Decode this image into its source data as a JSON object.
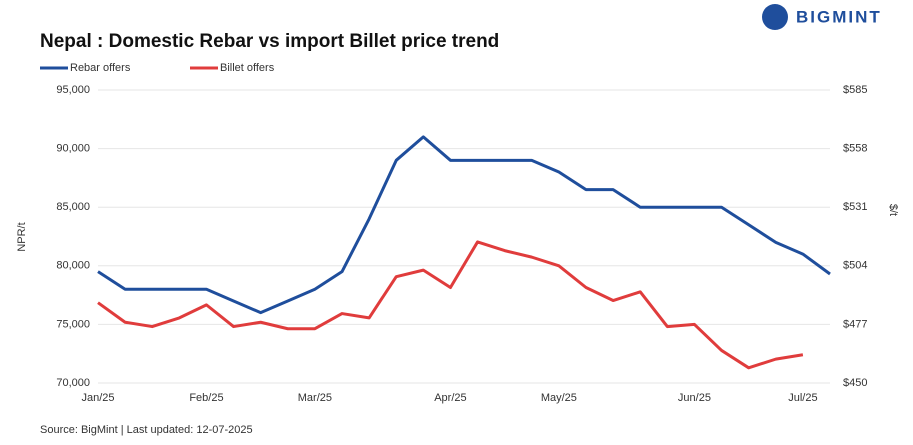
{
  "brand": "BIGMINT",
  "chart_data": {
    "type": "line",
    "title": "Nepal : Domestic Rebar vs import Billet price trend",
    "ylabel": "NPR/t",
    "y2label": "$/t",
    "source": "Source: BigMint | Last updated: 12-07-2025",
    "categories": [
      "Jan/25",
      null,
      null,
      null,
      "Feb/25",
      null,
      null,
      null,
      "Mar/25",
      null,
      null,
      null,
      null,
      "Apr/25",
      null,
      null,
      null,
      "May/25",
      null,
      null,
      null,
      null,
      "Jun/25",
      null,
      null,
      null,
      "Jul/25",
      null
    ],
    "series": [
      {
        "name": "Rebar offers",
        "color": "#1f4e9c",
        "values": [
          79500,
          78000,
          78000,
          78000,
          78000,
          77000,
          76000,
          77000,
          78000,
          79500,
          84000,
          89000,
          91000,
          89000,
          89000,
          89000,
          89000,
          88000,
          86500,
          86500,
          85000,
          85000,
          85000,
          85000,
          83500,
          82000,
          81000,
          79300
        ]
      },
      {
        "name": "Billet offers",
        "color": "#e03c3c",
        "axis": "y2",
        "values": [
          487,
          478,
          476,
          480,
          486,
          476,
          478,
          475,
          475,
          482,
          480,
          499,
          502,
          494,
          515,
          511,
          508,
          504,
          494,
          488,
          492,
          476,
          477,
          465,
          457,
          461,
          463,
          null
        ]
      }
    ],
    "ylim": [
      70000,
      95000
    ],
    "yticks": [
      {
        "value": 70000,
        "label": "70,000"
      },
      {
        "value": 75000,
        "label": "75,000"
      },
      {
        "value": 80000,
        "label": "80,000"
      },
      {
        "value": 85000,
        "label": "85,000"
      },
      {
        "value": 90000,
        "label": "90,000"
      },
      {
        "value": 95000,
        "label": "95,000"
      }
    ],
    "y2lim": [
      450,
      585
    ],
    "y2ticks": [
      {
        "value": 450,
        "label": "$450"
      },
      {
        "value": 477,
        "label": "$477"
      },
      {
        "value": 504,
        "label": "$504"
      },
      {
        "value": 531,
        "label": "$531"
      },
      {
        "value": 558,
        "label": "$558"
      },
      {
        "value": 585,
        "label": "$585"
      }
    ],
    "legend": "top-left"
  }
}
